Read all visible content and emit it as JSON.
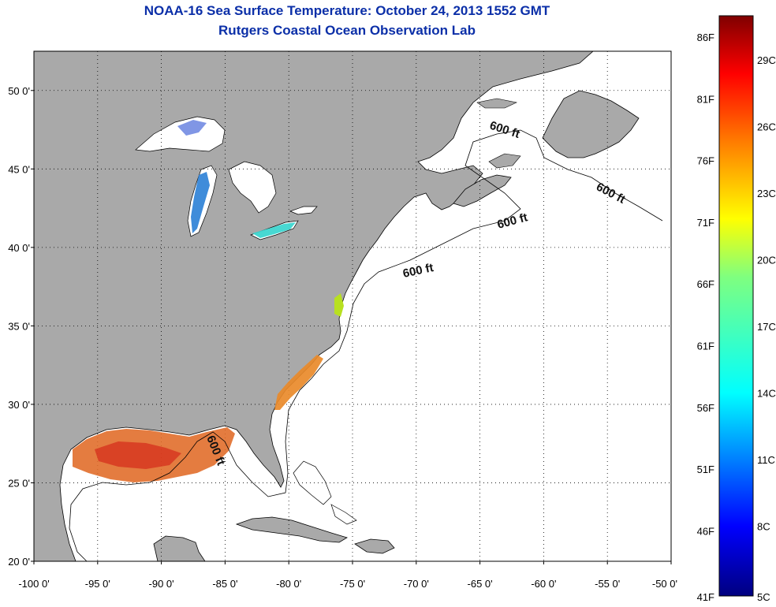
{
  "title": "NOAA-16 Sea Surface Temperature:  October 24, 2013 1552 GMT",
  "subtitle": "Rutgers Coastal Ocean Observation Lab",
  "map": {
    "lon_range": [
      -100,
      -50
    ],
    "lat_range": [
      20,
      52.5
    ],
    "x_tick_labels": [
      "-100 0'",
      "-95 0'",
      "-90 0'",
      "-85 0'",
      "-80 0'",
      "-75 0'",
      "-70 0'",
      "-65 0'",
      "-60 0'",
      "-55 0'",
      "-50 0'"
    ],
    "y_tick_labels": [
      "20 0'",
      "25 0'",
      "30 0'",
      "35 0'",
      "40 0'",
      "45 0'",
      "50 0'"
    ],
    "grid": true,
    "land_color": "#a9a9a9",
    "ocean_color": "#ffffff",
    "contour_label": "600 ft"
  },
  "colorbar": {
    "f_labels": [
      "86F",
      "81F",
      "76F",
      "71F",
      "66F",
      "61F",
      "56F",
      "51F",
      "46F",
      "41F"
    ],
    "c_labels": [
      "29C",
      "26C",
      "23C",
      "20C",
      "17C",
      "14C",
      "11C",
      "8C",
      "5C"
    ],
    "colors": [
      "#7f0000",
      "#ff0000",
      "#ff7f00",
      "#ffff00",
      "#7fff7f",
      "#00ffff",
      "#007fff",
      "#0000ff",
      "#00007f"
    ]
  }
}
